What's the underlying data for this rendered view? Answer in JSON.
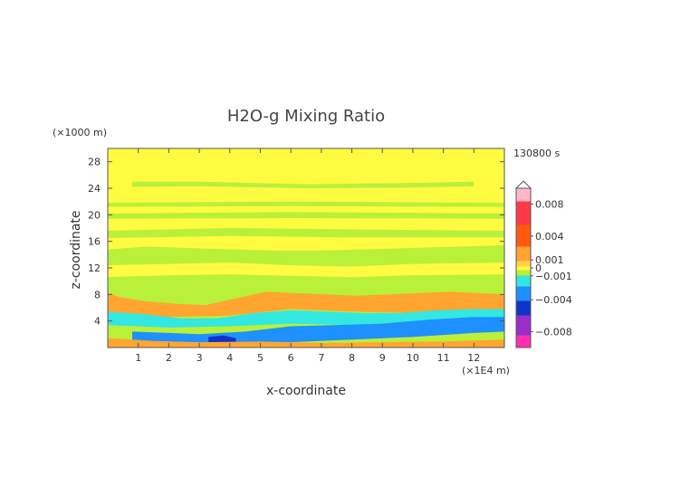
{
  "chart_data": {
    "type": "heatmap",
    "title": "H2O-g Mixing Ratio",
    "xlabel": "x-coordinate",
    "ylabel": "z-coordinate",
    "x_unit": "(×1E4 m)",
    "y_unit": "(×1000 m)",
    "time_label": "130800 s",
    "xlim": [
      0,
      13
    ],
    "ylim": [
      0,
      30
    ],
    "x_ticks": [
      "1",
      "2",
      "3",
      "4",
      "5",
      "6",
      "7",
      "8",
      "9",
      "10",
      "11",
      "12"
    ],
    "y_ticks": [
      "4",
      "8",
      "12",
      "16",
      "20",
      "24",
      "28"
    ],
    "colorbar": {
      "range": [
        -0.01,
        0.01
      ],
      "labels": [
        {
          "text": "0.008",
          "value": 0.008
        },
        {
          "text": "0.004",
          "value": 0.004
        },
        {
          "text": "0.001",
          "value": 0.001
        },
        {
          "text": "0",
          "value": 0.0
        },
        {
          "text": "−0.001",
          "value": -0.001
        },
        {
          "text": "−0.004",
          "value": -0.004
        },
        {
          "text": "−0.008",
          "value": -0.008
        }
      ],
      "stops": [
        {
          "value": 0.01,
          "color": "#ffb8c8"
        },
        {
          "value": 0.007,
          "color": "#ff3a48"
        },
        {
          "value": 0.004,
          "color": "#ff5a10"
        },
        {
          "value": 0.0015,
          "color": "#ffa530"
        },
        {
          "value": 0.0005,
          "color": "#ffd34a"
        },
        {
          "value": 0.0,
          "color": "#fffb40"
        },
        {
          "value": -0.0005,
          "color": "#b9f03a"
        },
        {
          "value": -0.0015,
          "color": "#32e8e0"
        },
        {
          "value": -0.003,
          "color": "#1e90ff"
        },
        {
          "value": -0.005,
          "color": "#1033c8"
        },
        {
          "value": -0.007,
          "color": "#9a2ecc"
        },
        {
          "value": -0.01,
          "color": "#ff2fb0"
        }
      ]
    },
    "background_value": 0.0,
    "regions": [
      {
        "value": -0.0007,
        "band": [
          [
            0,
            14.8
          ],
          [
            1.3,
            15.2
          ],
          [
            2.6,
            15.0
          ],
          [
            4,
            14.8
          ],
          [
            5.5,
            14.6
          ],
          [
            7,
            14.6
          ],
          [
            8.5,
            14.8
          ],
          [
            10,
            15.0
          ],
          [
            11.5,
            15.2
          ],
          [
            13,
            15.4
          ]
        ],
        "bottom": 0
      },
      {
        "value": -0.0006,
        "band": [
          [
            0,
            17.6
          ],
          [
            4,
            18.0
          ],
          [
            8,
            17.8
          ],
          [
            13,
            17.6
          ]
        ],
        "bottom": [
          [
            0,
            16.5
          ],
          [
            4,
            16.8
          ],
          [
            8,
            16.6
          ],
          [
            13,
            16.6
          ]
        ]
      },
      {
        "value": -0.0006,
        "band": [
          [
            0,
            20.2
          ],
          [
            6,
            20.4
          ],
          [
            13,
            20.2
          ]
        ],
        "bottom": [
          [
            0,
            19.4
          ],
          [
            6,
            19.5
          ],
          [
            13,
            19.4
          ]
        ]
      },
      {
        "value": -0.0006,
        "band": [
          [
            0,
            21.8
          ],
          [
            6,
            22.0
          ],
          [
            13,
            21.8
          ]
        ],
        "bottom": [
          [
            0,
            21.2
          ],
          [
            6,
            21.3
          ],
          [
            13,
            21.2
          ]
        ]
      },
      {
        "value": -0.0006,
        "band": [
          [
            0.8,
            25.0
          ],
          [
            3,
            25.0
          ],
          [
            6.5,
            24.6
          ],
          [
            10,
            24.8
          ],
          [
            12,
            25.0
          ]
        ],
        "bottom": [
          [
            0.8,
            24.2
          ],
          [
            3,
            24.3
          ],
          [
            6.5,
            24.0
          ],
          [
            10,
            24.1
          ],
          [
            12,
            24.3
          ]
        ]
      },
      {
        "value": 0.0,
        "band": [
          [
            0,
            12.4
          ],
          [
            2,
            12.6
          ],
          [
            4,
            12.8
          ],
          [
            6,
            12.4
          ],
          [
            8,
            12.2
          ],
          [
            10,
            12.6
          ],
          [
            13,
            12.8
          ]
        ],
        "bottom": [
          [
            0,
            10.6
          ],
          [
            2,
            10.9
          ],
          [
            4,
            11.0
          ],
          [
            6,
            10.8
          ],
          [
            8,
            10.6
          ],
          [
            10,
            10.9
          ],
          [
            13,
            11.0
          ]
        ]
      },
      {
        "value": 0.002,
        "band": [
          [
            0,
            8.2
          ],
          [
            0.4,
            7.6
          ],
          [
            1.2,
            7.0
          ],
          [
            2.2,
            6.6
          ],
          [
            3.2,
            6.4
          ],
          [
            4.2,
            7.4
          ],
          [
            5.2,
            8.4
          ],
          [
            6.2,
            8.2
          ],
          [
            7.2,
            8.0
          ],
          [
            8.2,
            7.8
          ],
          [
            9.2,
            8.0
          ],
          [
            10.2,
            8.2
          ],
          [
            11.2,
            8.4
          ],
          [
            12.2,
            8.2
          ],
          [
            13,
            8.0
          ]
        ],
        "bottom": [
          [
            0,
            5.0
          ],
          [
            2,
            4.6
          ],
          [
            4,
            4.8
          ],
          [
            6,
            5.8
          ],
          [
            8,
            5.4
          ],
          [
            10,
            5.2
          ],
          [
            12,
            5.8
          ],
          [
            13,
            5.6
          ]
        ]
      },
      {
        "value": -0.0012,
        "band": [
          [
            0,
            5.4
          ],
          [
            1.2,
            5.0
          ],
          [
            2.4,
            4.4
          ],
          [
            3.6,
            4.4
          ],
          [
            4.8,
            5.2
          ],
          [
            6,
            5.6
          ],
          [
            7.2,
            5.4
          ],
          [
            8.4,
            5.2
          ],
          [
            9.6,
            5.2
          ],
          [
            10.8,
            5.6
          ],
          [
            12,
            5.8
          ],
          [
            13,
            5.8
          ]
        ],
        "bottom": [
          [
            0,
            3.4
          ],
          [
            2,
            3.0
          ],
          [
            4,
            3.2
          ],
          [
            6,
            3.6
          ],
          [
            8,
            3.4
          ],
          [
            10,
            3.6
          ],
          [
            12,
            4.2
          ],
          [
            13,
            4.0
          ]
        ]
      },
      {
        "value": -0.0025,
        "band": [
          [
            0.8,
            2.4
          ],
          [
            2,
            2.2
          ],
          [
            3,
            2.0
          ],
          [
            4.5,
            2.4
          ],
          [
            6,
            3.2
          ],
          [
            7.5,
            3.4
          ],
          [
            9,
            3.6
          ],
          [
            10.5,
            4.2
          ],
          [
            12,
            4.6
          ],
          [
            13,
            4.6
          ]
        ],
        "bottom": [
          [
            0.8,
            0.8
          ],
          [
            2,
            0.6
          ],
          [
            4,
            0.4
          ],
          [
            6,
            0.8
          ],
          [
            8,
            1.2
          ],
          [
            10,
            1.6
          ],
          [
            12,
            2.2
          ],
          [
            13,
            2.4
          ]
        ]
      },
      {
        "value": -0.005,
        "band": [
          [
            3.3,
            1.6
          ],
          [
            3.8,
            1.8
          ],
          [
            4.2,
            1.4
          ]
        ],
        "bottom": [
          [
            3.3,
            0.6
          ],
          [
            3.8,
            0.4
          ],
          [
            4.2,
            0.8
          ]
        ]
      },
      {
        "value": 0.002,
        "band": [
          [
            0,
            1.4
          ],
          [
            1.5,
            1.0
          ],
          [
            3,
            0.8
          ],
          [
            5,
            0.9
          ],
          [
            7,
            0.7
          ],
          [
            9,
            0.8
          ],
          [
            11,
            0.9
          ],
          [
            13,
            1.2
          ]
        ],
        "bottom": 0
      }
    ]
  }
}
